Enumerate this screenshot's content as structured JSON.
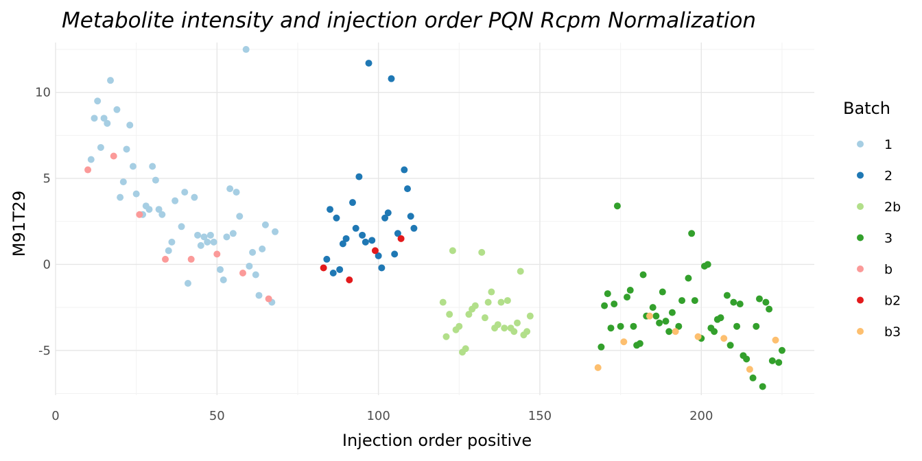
{
  "chart_data": {
    "type": "scatter",
    "title": "Metabolite intensity and injection order PQN Rcpm Normalization",
    "xlabel": "Injection order positive",
    "ylabel": "M91T29",
    "xlim": [
      0,
      235
    ],
    "ylim": [
      -7.6,
      12.9
    ],
    "x_ticks": [
      0,
      50,
      100,
      150,
      200
    ],
    "y_ticks": [
      -5,
      0,
      5,
      10
    ],
    "grid": true,
    "legend_title": "Batch",
    "legend_position": "right",
    "series": [
      {
        "name": "1",
        "color": "#a6cee3",
        "points": [
          [
            11,
            6.1
          ],
          [
            12,
            8.5
          ],
          [
            13,
            9.5
          ],
          [
            14,
            6.8
          ],
          [
            15,
            8.5
          ],
          [
            16,
            8.2
          ],
          [
            17,
            10.7
          ],
          [
            19,
            9.0
          ],
          [
            20,
            3.9
          ],
          [
            21,
            4.8
          ],
          [
            22,
            6.7
          ],
          [
            23,
            8.1
          ],
          [
            24,
            5.7
          ],
          [
            25,
            4.1
          ],
          [
            27,
            2.9
          ],
          [
            28,
            3.4
          ],
          [
            29,
            3.2
          ],
          [
            30,
            5.7
          ],
          [
            31,
            4.9
          ],
          [
            32,
            3.2
          ],
          [
            33,
            2.9
          ],
          [
            35,
            0.8
          ],
          [
            36,
            1.3
          ],
          [
            37,
            3.7
          ],
          [
            39,
            2.2
          ],
          [
            40,
            4.2
          ],
          [
            41,
            -1.1
          ],
          [
            43,
            3.9
          ],
          [
            44,
            1.7
          ],
          [
            45,
            1.1
          ],
          [
            46,
            1.6
          ],
          [
            47,
            1.3
          ],
          [
            48,
            1.7
          ],
          [
            49,
            1.3
          ],
          [
            51,
            -0.3
          ],
          [
            52,
            -0.9
          ],
          [
            53,
            1.6
          ],
          [
            54,
            4.4
          ],
          [
            55,
            1.8
          ],
          [
            56,
            4.2
          ],
          [
            57,
            2.8
          ],
          [
            59,
            12.5
          ],
          [
            60,
            -0.1
          ],
          [
            61,
            0.7
          ],
          [
            62,
            -0.6
          ],
          [
            63,
            -1.8
          ],
          [
            64,
            0.9
          ],
          [
            65,
            2.3
          ],
          [
            67,
            -2.2
          ],
          [
            68,
            1.9
          ]
        ]
      },
      {
        "name": "2",
        "color": "#1f78b4",
        "points": [
          [
            84,
            0.3
          ],
          [
            85,
            3.2
          ],
          [
            86,
            -0.5
          ],
          [
            87,
            2.7
          ],
          [
            88,
            -0.3
          ],
          [
            89,
            1.2
          ],
          [
            90,
            1.5
          ],
          [
            92,
            3.6
          ],
          [
            93,
            2.1
          ],
          [
            94,
            5.1
          ],
          [
            95,
            1.7
          ],
          [
            96,
            1.3
          ],
          [
            97,
            11.7
          ],
          [
            98,
            1.4
          ],
          [
            100,
            0.5
          ],
          [
            101,
            -0.2
          ],
          [
            102,
            2.7
          ],
          [
            103,
            3.0
          ],
          [
            104,
            10.8
          ],
          [
            105,
            0.6
          ],
          [
            106,
            1.8
          ],
          [
            108,
            5.5
          ],
          [
            109,
            4.4
          ],
          [
            110,
            2.8
          ],
          [
            111,
            2.1
          ]
        ]
      },
      {
        "name": "2b",
        "color": "#b2df8a",
        "points": [
          [
            120,
            -2.2
          ],
          [
            121,
            -4.2
          ],
          [
            122,
            -2.9
          ],
          [
            123,
            0.8
          ],
          [
            124,
            -3.8
          ],
          [
            125,
            -3.6
          ],
          [
            126,
            -5.1
          ],
          [
            127,
            -4.9
          ],
          [
            128,
            -2.9
          ],
          [
            129,
            -2.6
          ],
          [
            130,
            -2.4
          ],
          [
            132,
            0.7
          ],
          [
            133,
            -3.1
          ],
          [
            134,
            -2.2
          ],
          [
            135,
            -1.6
          ],
          [
            136,
            -3.7
          ],
          [
            137,
            -3.5
          ],
          [
            138,
            -2.2
          ],
          [
            139,
            -3.7
          ],
          [
            140,
            -2.1
          ],
          [
            141,
            -3.7
          ],
          [
            142,
            -3.9
          ],
          [
            143,
            -3.4
          ],
          [
            144,
            -0.4
          ],
          [
            145,
            -4.1
          ],
          [
            146,
            -3.9
          ],
          [
            147,
            -3.0
          ]
        ]
      },
      {
        "name": "3",
        "color": "#33a02c",
        "points": [
          [
            169,
            -4.8
          ],
          [
            170,
            -2.4
          ],
          [
            171,
            -1.7
          ],
          [
            172,
            -3.7
          ],
          [
            173,
            -2.3
          ],
          [
            174,
            3.4
          ],
          [
            175,
            -3.6
          ],
          [
            177,
            -1.9
          ],
          [
            178,
            -1.5
          ],
          [
            179,
            -3.6
          ],
          [
            180,
            -4.7
          ],
          [
            181,
            -4.6
          ],
          [
            182,
            -0.6
          ],
          [
            183,
            -3.0
          ],
          [
            185,
            -2.5
          ],
          [
            186,
            -3.0
          ],
          [
            187,
            -3.4
          ],
          [
            188,
            -1.6
          ],
          [
            189,
            -3.3
          ],
          [
            190,
            -3.9
          ],
          [
            191,
            -2.8
          ],
          [
            193,
            -3.6
          ],
          [
            194,
            -2.1
          ],
          [
            196,
            -0.8
          ],
          [
            197,
            1.8
          ],
          [
            198,
            -2.1
          ],
          [
            200,
            -4.3
          ],
          [
            201,
            -0.1
          ],
          [
            202,
            0.0
          ],
          [
            203,
            -3.7
          ],
          [
            204,
            -3.9
          ],
          [
            205,
            -3.2
          ],
          [
            206,
            -3.1
          ],
          [
            208,
            -1.8
          ],
          [
            209,
            -4.7
          ],
          [
            210,
            -2.2
          ],
          [
            211,
            -3.6
          ],
          [
            212,
            -2.3
          ],
          [
            213,
            -5.3
          ],
          [
            214,
            -5.5
          ],
          [
            216,
            -6.6
          ],
          [
            217,
            -3.6
          ],
          [
            218,
            -2.0
          ],
          [
            219,
            -7.1
          ],
          [
            220,
            -2.2
          ],
          [
            221,
            -2.6
          ],
          [
            222,
            -5.6
          ],
          [
            224,
            -5.7
          ],
          [
            225,
            -5.0
          ]
        ]
      },
      {
        "name": "b",
        "color": "#fb9a99",
        "points": [
          [
            10,
            5.5
          ],
          [
            18,
            6.3
          ],
          [
            26,
            2.9
          ],
          [
            34,
            0.3
          ],
          [
            42,
            0.3
          ],
          [
            50,
            0.6
          ],
          [
            58,
            -0.5
          ],
          [
            66,
            -2.0
          ]
        ]
      },
      {
        "name": "b2",
        "color": "#e31a1c",
        "points": [
          [
            83,
            -0.2
          ],
          [
            91,
            -0.9
          ],
          [
            99,
            0.8
          ],
          [
            107,
            1.5
          ]
        ]
      },
      {
        "name": "b3",
        "color": "#fdbf6f",
        "points": [
          [
            168,
            -6.0
          ],
          [
            176,
            -4.5
          ],
          [
            184,
            -3.0
          ],
          [
            192,
            -3.9
          ],
          [
            199,
            -4.2
          ],
          [
            207,
            -4.3
          ],
          [
            215,
            -6.1
          ],
          [
            223,
            -4.4
          ]
        ]
      }
    ]
  }
}
